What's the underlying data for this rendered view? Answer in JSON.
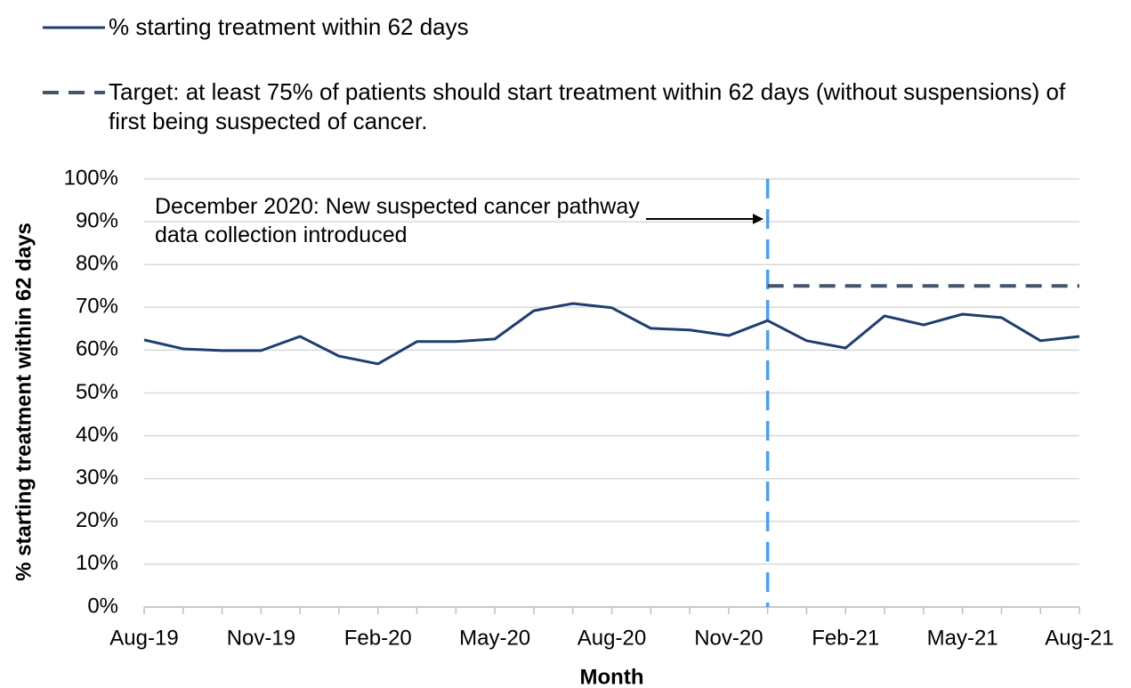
{
  "chart_data": {
    "type": "line",
    "categories": [
      "Aug-19",
      null,
      null,
      "Nov-19",
      null,
      null,
      "Feb-20",
      null,
      null,
      "May-20",
      null,
      null,
      "Aug-20",
      null,
      null,
      "Nov-20",
      null,
      null,
      "Feb-21",
      null,
      null,
      "May-21",
      null,
      null,
      "Aug-21"
    ],
    "series": [
      {
        "name": "% starting treatment within 62 days",
        "color": "#1f3d6e",
        "dashed": false,
        "values": [
          62.4,
          60.3,
          59.9,
          59.9,
          63.2,
          58.6,
          56.8,
          62.0,
          62.0,
          62.6,
          69.2,
          70.9,
          69.9,
          65.1,
          64.7,
          63.4,
          66.9,
          62.2,
          60.5,
          68.0,
          65.9,
          68.4,
          67.6,
          62.2,
          63.2
        ]
      },
      {
        "name": "Target: at least 75% of patients should start treatment within 62 days (without suspensions) of first being suspected of cancer.",
        "color": "#44546a",
        "dashed": true,
        "values": [
          null,
          null,
          null,
          null,
          null,
          null,
          null,
          null,
          null,
          null,
          null,
          null,
          null,
          null,
          null,
          null,
          75,
          75,
          75,
          75,
          75,
          75,
          75,
          75,
          75
        ]
      }
    ],
    "annotation": {
      "text": "December 2020: New suspected cancer pathway data collection introduced",
      "color": "#4a9ff0"
    },
    "xlabel": "Month",
    "ylabel": "% starting treatment within 62 days",
    "ylim": [
      0,
      100
    ],
    "yticks": [
      {
        "value": 0,
        "label": "0%"
      },
      {
        "value": 10,
        "label": "10%"
      },
      {
        "value": 20,
        "label": "20%"
      },
      {
        "value": 30,
        "label": "30%"
      },
      {
        "value": 40,
        "label": "40%"
      },
      {
        "value": 50,
        "label": "50%"
      },
      {
        "value": 60,
        "label": "60%"
      },
      {
        "value": 70,
        "label": "70%"
      },
      {
        "value": 80,
        "label": "80%"
      },
      {
        "value": 90,
        "label": "90%"
      },
      {
        "value": 100,
        "label": "100%"
      }
    ],
    "grid": true
  }
}
